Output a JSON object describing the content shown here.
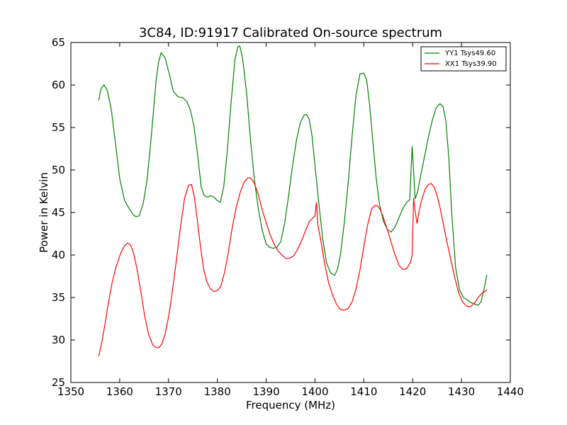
{
  "chart_data": {
    "type": "line",
    "title": "3C84, ID:91917 Calibrated On-source spectrum",
    "xlabel": "Frequency (MHz)",
    "ylabel": "Power in Kelvin",
    "xlim": [
      1350,
      1440
    ],
    "ylim": [
      25,
      65
    ],
    "xticks": [
      1350,
      1360,
      1370,
      1380,
      1390,
      1400,
      1410,
      1420,
      1430,
      1440
    ],
    "yticks": [
      25,
      30,
      35,
      40,
      45,
      50,
      55,
      60,
      65
    ],
    "grid": false,
    "legend_position": "top-right",
    "series": [
      {
        "name": "YY1 Tsys49.60",
        "color": "#008000",
        "x": [
          1355.7,
          1356.2,
          1356.8,
          1357.5,
          1358.3,
          1359.1,
          1360.0,
          1361.0,
          1362.0,
          1362.7,
          1363.3,
          1364.0,
          1364.8,
          1365.6,
          1366.4,
          1367.0,
          1367.5,
          1368.0,
          1368.5,
          1369.3,
          1370.2,
          1371.0,
          1372.0,
          1373.0,
          1373.8,
          1374.5,
          1375.2,
          1376.0,
          1376.7,
          1377.3,
          1378.0,
          1378.6,
          1379.3,
          1380.0,
          1380.6,
          1381.3,
          1382.0,
          1382.8,
          1383.6,
          1384.2,
          1384.6,
          1385.2,
          1386.0,
          1386.8,
          1387.6,
          1388.4,
          1389.2,
          1390.0,
          1390.7,
          1391.4,
          1392.2,
          1393.0,
          1393.8,
          1394.6,
          1395.4,
          1396.2,
          1397.0,
          1397.8,
          1398.3,
          1398.8,
          1399.4,
          1400.0,
          1400.8,
          1401.6,
          1402.4,
          1403.2,
          1404.0,
          1404.6,
          1405.2,
          1406.0,
          1406.8,
          1407.6,
          1408.4,
          1409.2,
          1410.0,
          1410.6,
          1411.2,
          1411.8,
          1412.5,
          1413.2,
          1414.0,
          1414.8,
          1415.6,
          1416.4,
          1417.2,
          1418.0,
          1418.8,
          1419.4,
          1419.9,
          1420.2,
          1420.5,
          1421.0,
          1421.6,
          1422.4,
          1423.2,
          1424.0,
          1424.8,
          1425.6,
          1426.2,
          1426.8,
          1427.4,
          1428.0,
          1428.8,
          1429.6,
          1430.4,
          1431.2,
          1432.0,
          1432.8,
          1433.4,
          1434.0,
          1434.6,
          1435.2
        ],
        "y": [
          58.2,
          59.6,
          60.0,
          59.3,
          57.0,
          53.3,
          49.0,
          46.4,
          45.4,
          44.8,
          44.5,
          44.6,
          46.0,
          48.8,
          53.5,
          57.5,
          60.8,
          62.8,
          63.8,
          63.2,
          61.2,
          59.2,
          58.6,
          58.5,
          58.0,
          57.0,
          55.2,
          51.6,
          48.0,
          47.0,
          46.8,
          47.0,
          46.8,
          46.4,
          46.2,
          48.0,
          52.0,
          57.8,
          63.0,
          64.5,
          64.6,
          63.0,
          59.0,
          53.5,
          48.8,
          45.4,
          42.9,
          41.3,
          40.9,
          40.8,
          40.9,
          41.6,
          43.8,
          47.0,
          50.5,
          53.5,
          55.6,
          56.5,
          56.5,
          56.0,
          54.0,
          50.5,
          46.0,
          41.8,
          39.0,
          37.9,
          37.6,
          38.3,
          40.0,
          43.8,
          48.5,
          54.0,
          58.8,
          61.3,
          61.4,
          60.5,
          57.6,
          53.7,
          49.2,
          46.0,
          44.0,
          43.0,
          42.7,
          43.3,
          44.4,
          45.5,
          46.2,
          46.5,
          52.8,
          49.8,
          46.6,
          47.4,
          49.2,
          51.5,
          53.8,
          55.8,
          57.3,
          57.8,
          57.5,
          55.8,
          51.5,
          45.0,
          38.5,
          35.9,
          35.0,
          34.7,
          34.4,
          34.2,
          34.1,
          34.5,
          35.9,
          37.7
        ]
      },
      {
        "name": "XX1 Tsys39.90",
        "color": "#ff0000",
        "x": [
          1355.7,
          1356.3,
          1357.0,
          1357.7,
          1358.5,
          1359.3,
          1360.2,
          1361.0,
          1361.6,
          1362.2,
          1362.8,
          1363.5,
          1364.3,
          1365.1,
          1365.9,
          1366.7,
          1367.4,
          1368.0,
          1368.6,
          1369.3,
          1370.1,
          1370.9,
          1371.7,
          1372.5,
          1373.3,
          1374.1,
          1374.7,
          1375.3,
          1375.9,
          1376.5,
          1377.2,
          1377.9,
          1378.6,
          1379.3,
          1380.0,
          1380.7,
          1381.5,
          1382.3,
          1383.1,
          1383.9,
          1384.7,
          1385.5,
          1386.3,
          1386.9,
          1387.6,
          1388.4,
          1389.2,
          1390.0,
          1390.8,
          1391.6,
          1392.4,
          1393.2,
          1394.0,
          1394.8,
          1395.6,
          1396.4,
          1397.2,
          1398.0,
          1398.8,
          1399.6,
          1400.0,
          1400.3,
          1400.6,
          1401.2,
          1402.0,
          1402.8,
          1403.6,
          1404.4,
          1405.2,
          1406.0,
          1406.8,
          1407.6,
          1408.4,
          1409.2,
          1410.0,
          1410.8,
          1411.6,
          1412.2,
          1412.8,
          1413.4,
          1414.0,
          1414.8,
          1415.6,
          1416.4,
          1417.2,
          1418.0,
          1418.8,
          1419.6,
          1419.9,
          1420.2,
          1420.5,
          1420.9,
          1421.4,
          1422.0,
          1422.6,
          1423.2,
          1423.8,
          1424.4,
          1425.0,
          1425.6,
          1426.3,
          1427.0,
          1427.8,
          1428.6,
          1429.4,
          1430.2,
          1431.0,
          1431.8,
          1432.6,
          1433.4,
          1434.2,
          1435.2
        ],
        "y": [
          28.1,
          29.6,
          31.9,
          34.4,
          36.9,
          38.7,
          40.2,
          41.1,
          41.4,
          41.2,
          40.3,
          38.5,
          35.8,
          32.9,
          30.7,
          29.5,
          29.1,
          29.1,
          29.5,
          30.7,
          33.0,
          36.2,
          39.8,
          43.5,
          46.7,
          48.2,
          48.3,
          46.8,
          44.1,
          41.2,
          38.3,
          36.8,
          36.0,
          35.7,
          35.8,
          36.3,
          38.0,
          40.5,
          43.4,
          45.7,
          47.4,
          48.6,
          49.1,
          49.0,
          48.4,
          47.1,
          45.3,
          43.8,
          42.4,
          41.3,
          40.5,
          40.0,
          39.6,
          39.6,
          39.9,
          40.6,
          41.6,
          42.8,
          43.9,
          44.4,
          44.6,
          46.2,
          43.5,
          41.7,
          38.9,
          36.7,
          35.3,
          34.2,
          33.6,
          33.5,
          33.7,
          34.5,
          36.0,
          38.2,
          41.0,
          43.6,
          45.4,
          45.8,
          45.8,
          45.3,
          44.4,
          43.0,
          41.5,
          40.0,
          38.8,
          38.3,
          38.4,
          39.2,
          40.0,
          46.7,
          45.2,
          43.7,
          45.4,
          46.8,
          47.8,
          48.3,
          48.4,
          48.0,
          47.0,
          45.6,
          43.6,
          41.6,
          39.5,
          37.4,
          35.6,
          34.5,
          34.0,
          33.9,
          34.3,
          35.0,
          35.5,
          35.9
        ]
      }
    ]
  }
}
